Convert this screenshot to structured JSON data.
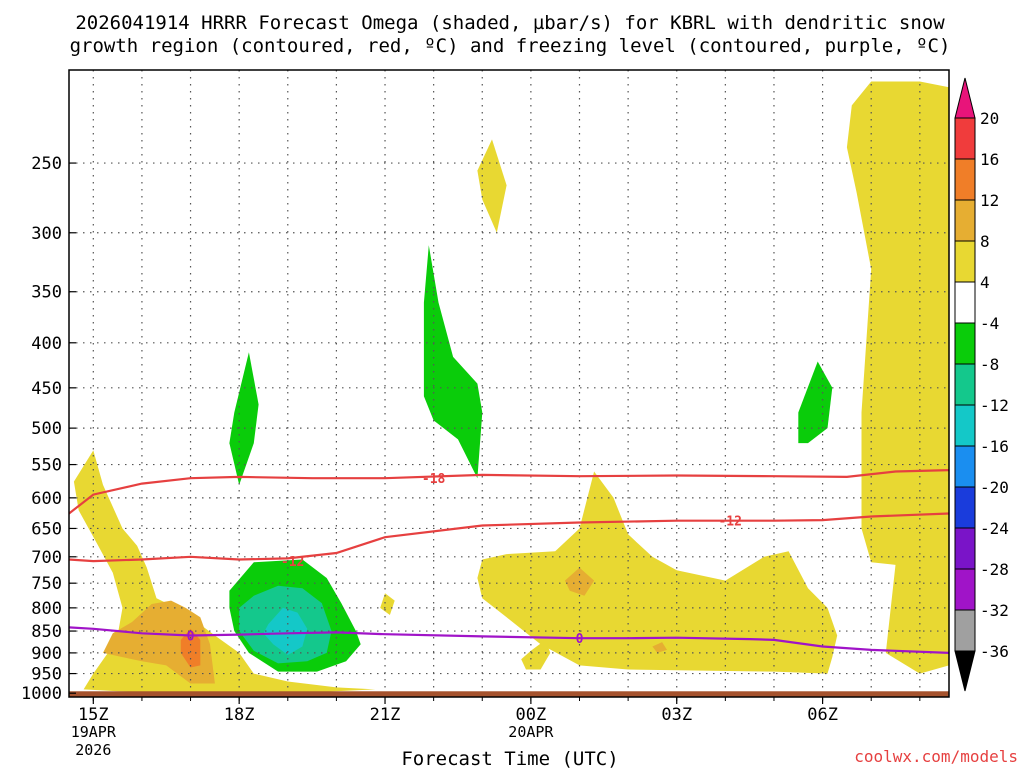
{
  "chart_data": {
    "type": "heatmap",
    "title_line1": "2026041914 HRRR Forecast Omega (shaded, µbar/s) for KBRL with dendritic snow",
    "title_line2": "growth region (contoured, red, ºC) and freezing level (contoured, purple, ºC)",
    "xlabel": "Forecast Time (UTC)",
    "ylabel": "",
    "watermark": "coolwx.com/models",
    "x_range_hours": [
      14.5,
      32.6
    ],
    "y_range_hpa": [
      1010,
      196
    ],
    "y_ticks": [
      250,
      300,
      350,
      400,
      450,
      500,
      550,
      600,
      650,
      700,
      750,
      800,
      850,
      900,
      950,
      1000
    ],
    "x_ticks": [
      {
        "hour": 15,
        "label": "15Z",
        "date1": "19APR",
        "date2": "2026"
      },
      {
        "hour": 18,
        "label": "18Z",
        "date1": "",
        "date2": ""
      },
      {
        "hour": 21,
        "label": "21Z",
        "date1": "",
        "date2": ""
      },
      {
        "hour": 24,
        "label": "00Z",
        "date1": "20APR",
        "date2": ""
      },
      {
        "hour": 27,
        "label": "03Z",
        "date1": "",
        "date2": ""
      },
      {
        "hour": 30,
        "label": "06Z",
        "date1": "",
        "date2": ""
      }
    ],
    "colorbar": {
      "labels": [
        "20",
        "16",
        "12",
        "8",
        "4",
        "-4",
        "-8",
        "-12",
        "-16",
        "-20",
        "-24",
        "-28",
        "-32",
        "-36"
      ],
      "colors": [
        "#e8147a",
        "#f03c3c",
        "#f07e28",
        "#e6ae32",
        "#e8d832",
        "#ffffff",
        "#0acc0a",
        "#14c88c",
        "#14c8c8",
        "#1a8ef0",
        "#1a3cdc",
        "#7a14c8",
        "#a014c8",
        "#a0a0a0",
        "#000000"
      ]
    },
    "omega_regions": [
      {
        "level": 4,
        "color": "#e8d832",
        "points": [
          [
            15.0,
            530
          ],
          [
            15.2,
            580
          ],
          [
            15.6,
            650
          ],
          [
            15.9,
            680
          ],
          [
            16.1,
            720
          ],
          [
            16.3,
            780
          ],
          [
            16.7,
            800
          ],
          [
            17.0,
            820
          ],
          [
            17.5,
            860
          ],
          [
            18.0,
            900
          ],
          [
            18.3,
            950
          ],
          [
            19.0,
            970
          ],
          [
            20.0,
            985
          ],
          [
            20.8,
            990
          ],
          [
            19.5,
            998
          ],
          [
            17.0,
            998
          ],
          [
            15.5,
            995
          ],
          [
            14.8,
            990
          ],
          [
            15.0,
            950
          ],
          [
            15.3,
            900
          ],
          [
            15.5,
            860
          ],
          [
            15.6,
            800
          ],
          [
            15.4,
            730
          ],
          [
            15.1,
            680
          ],
          [
            14.7,
            620
          ],
          [
            14.6,
            575
          ]
        ]
      },
      {
        "level": 4,
        "color": "#e8d832",
        "points": [
          [
            23.0,
            705
          ],
          [
            23.5,
            695
          ],
          [
            24.5,
            690
          ],
          [
            25.0,
            650
          ],
          [
            25.3,
            560
          ],
          [
            25.7,
            600
          ],
          [
            26.0,
            660
          ],
          [
            26.5,
            700
          ],
          [
            27.0,
            725
          ],
          [
            28.0,
            745
          ],
          [
            28.8,
            700
          ],
          [
            29.3,
            690
          ],
          [
            29.7,
            760
          ],
          [
            30.1,
            800
          ],
          [
            30.3,
            860
          ],
          [
            30.2,
            910
          ],
          [
            30.1,
            950
          ],
          [
            29.0,
            945
          ],
          [
            27.0,
            942
          ],
          [
            26.0,
            940
          ],
          [
            25.0,
            930
          ],
          [
            24.2,
            880
          ],
          [
            23.5,
            820
          ],
          [
            23.0,
            780
          ],
          [
            22.9,
            740
          ]
        ]
      },
      {
        "level": 4,
        "color": "#e8d832",
        "points": [
          [
            24.0,
            895
          ],
          [
            24.3,
            870
          ],
          [
            24.4,
            900
          ],
          [
            24.2,
            940
          ],
          [
            23.9,
            940
          ],
          [
            23.8,
            915
          ]
        ]
      },
      {
        "level": 4,
        "color": "#e8d832",
        "points": [
          [
            21.0,
            770
          ],
          [
            21.2,
            785
          ],
          [
            21.1,
            815
          ],
          [
            20.9,
            800
          ]
        ]
      },
      {
        "level": 4,
        "color": "#e8d832",
        "points": [
          [
            23.2,
            235
          ],
          [
            23.5,
            265
          ],
          [
            23.3,
            300
          ],
          [
            23.0,
            275
          ],
          [
            22.9,
            255
          ]
        ]
      },
      {
        "level": 4,
        "color": "#e8d832",
        "points": [
          [
            30.6,
            215
          ],
          [
            31.0,
            202
          ],
          [
            32.0,
            202
          ],
          [
            32.6,
            205
          ],
          [
            32.6,
            930
          ],
          [
            32.0,
            950
          ],
          [
            31.3,
            900
          ],
          [
            31.5,
            715
          ],
          [
            31.0,
            710
          ],
          [
            30.8,
            650
          ],
          [
            30.8,
            480
          ],
          [
            31.0,
            330
          ],
          [
            30.7,
            270
          ],
          [
            30.5,
            240
          ]
        ]
      },
      {
        "level": 8,
        "color": "#e6ae32",
        "points": [
          [
            15.4,
            855
          ],
          [
            15.8,
            830
          ],
          [
            16.2,
            792
          ],
          [
            16.6,
            785
          ],
          [
            16.9,
            800
          ],
          [
            17.2,
            820
          ],
          [
            17.4,
            880
          ],
          [
            17.5,
            975
          ],
          [
            17.0,
            975
          ],
          [
            16.5,
            930
          ],
          [
            16.0,
            920
          ],
          [
            15.6,
            910
          ],
          [
            15.2,
            900
          ]
        ]
      },
      {
        "level": 8,
        "color": "#e6ae32",
        "points": [
          [
            24.7,
            745
          ],
          [
            25.0,
            720
          ],
          [
            25.3,
            745
          ],
          [
            25.1,
            775
          ],
          [
            24.8,
            765
          ]
        ]
      },
      {
        "level": 8,
        "color": "#e6ae32",
        "points": [
          [
            26.5,
            885
          ],
          [
            26.7,
            875
          ],
          [
            26.8,
            893
          ],
          [
            26.6,
            900
          ]
        ]
      },
      {
        "level": 12,
        "color": "#f07e28",
        "points": [
          [
            16.8,
            870
          ],
          [
            17.0,
            845
          ],
          [
            17.2,
            870
          ],
          [
            17.2,
            930
          ],
          [
            17.0,
            935
          ],
          [
            16.8,
            900
          ]
        ]
      },
      {
        "level": -4,
        "color": "#0acc0a",
        "points": [
          [
            17.9,
            480
          ],
          [
            18.2,
            410
          ],
          [
            18.4,
            470
          ],
          [
            18.3,
            520
          ],
          [
            18.0,
            580
          ],
          [
            17.8,
            520
          ]
        ]
      },
      {
        "level": -4,
        "color": "#0acc0a",
        "points": [
          [
            21.8,
            360
          ],
          [
            21.9,
            310
          ],
          [
            22.1,
            360
          ],
          [
            22.4,
            415
          ],
          [
            22.9,
            445
          ],
          [
            23.0,
            480
          ],
          [
            22.9,
            570
          ],
          [
            22.5,
            515
          ],
          [
            22.0,
            490
          ],
          [
            21.8,
            460
          ]
        ]
      },
      {
        "level": -4,
        "color": "#0acc0a",
        "points": [
          [
            29.5,
            480
          ],
          [
            29.9,
            420
          ],
          [
            30.2,
            450
          ],
          [
            30.1,
            500
          ],
          [
            29.7,
            520
          ],
          [
            29.5,
            520
          ]
        ]
      },
      {
        "level": -4,
        "color": "#0acc0a",
        "points": [
          [
            17.8,
            765
          ],
          [
            18.3,
            710
          ],
          [
            19.3,
            705
          ],
          [
            19.8,
            740
          ],
          [
            20.1,
            790
          ],
          [
            20.4,
            850
          ],
          [
            20.5,
            880
          ],
          [
            20.2,
            920
          ],
          [
            19.6,
            945
          ],
          [
            18.8,
            945
          ],
          [
            18.2,
            900
          ],
          [
            17.9,
            850
          ],
          [
            17.8,
            800
          ]
        ]
      },
      {
        "level": -8,
        "color": "#14c88c",
        "points": [
          [
            18.0,
            800
          ],
          [
            18.3,
            775
          ],
          [
            18.8,
            755
          ],
          [
            19.3,
            760
          ],
          [
            19.7,
            790
          ],
          [
            19.9,
            850
          ],
          [
            19.8,
            900
          ],
          [
            19.4,
            920
          ],
          [
            18.8,
            925
          ],
          [
            18.3,
            895
          ],
          [
            18.0,
            850
          ]
        ]
      },
      {
        "level": -12,
        "color": "#14c8c8",
        "points": [
          [
            18.6,
            835
          ],
          [
            18.9,
            800
          ],
          [
            19.2,
            810
          ],
          [
            19.4,
            845
          ],
          [
            19.3,
            885
          ],
          [
            19.0,
            905
          ],
          [
            18.7,
            880
          ],
          [
            18.5,
            855
          ]
        ]
      }
    ],
    "contours": [
      {
        "name": "dgz-minus-18",
        "label": "-18",
        "label_hour": 22.0,
        "label_p": 570,
        "color": "#e64040",
        "points": [
          [
            14.5,
            625
          ],
          [
            15.0,
            595
          ],
          [
            16.0,
            578
          ],
          [
            17.0,
            570
          ],
          [
            18.0,
            568
          ],
          [
            19.5,
            570
          ],
          [
            21.0,
            570
          ],
          [
            23.0,
            565
          ],
          [
            25.0,
            567
          ],
          [
            27.0,
            566
          ],
          [
            29.0,
            567
          ],
          [
            30.5,
            568
          ],
          [
            31.5,
            560
          ],
          [
            32.6,
            558
          ]
        ]
      },
      {
        "name": "dgz-minus-12",
        "label": "-12",
        "label_hour": 28.1,
        "label_p": 637,
        "color": "#e64040",
        "points": [
          [
            14.5,
            705
          ],
          [
            15.0,
            708
          ],
          [
            16.0,
            705
          ],
          [
            17.0,
            700
          ],
          [
            18.0,
            705
          ],
          [
            19.0,
            703
          ],
          [
            20.0,
            693
          ],
          [
            21.0,
            665
          ],
          [
            23.0,
            645
          ],
          [
            25.0,
            640
          ],
          [
            27.0,
            637
          ],
          [
            29.0,
            637
          ],
          [
            30.0,
            636
          ],
          [
            31.0,
            630
          ],
          [
            32.6,
            625
          ]
        ]
      },
      {
        "name": "dgz-minus-12-b",
        "label": "-12",
        "label_hour": 19.1,
        "label_p": 708,
        "color": "#e64040",
        "points": []
      },
      {
        "name": "freezing-level",
        "label": "0",
        "label_hour": 17.0,
        "label_p": 860,
        "color": "#a014c8",
        "points": [
          [
            14.5,
            842
          ],
          [
            15.0,
            845
          ],
          [
            16.0,
            855
          ],
          [
            17.0,
            860
          ],
          [
            18.0,
            858
          ],
          [
            19.0,
            855
          ],
          [
            20.0,
            853
          ],
          [
            21.0,
            857
          ],
          [
            23.0,
            862
          ],
          [
            25.0,
            866
          ],
          [
            26.0,
            866
          ],
          [
            27.0,
            865
          ],
          [
            28.5,
            868
          ],
          [
            29.0,
            870
          ],
          [
            30.0,
            885
          ],
          [
            31.0,
            893
          ],
          [
            32.6,
            900
          ]
        ]
      },
      {
        "name": "freezing-level-b",
        "label": "0",
        "label_hour": 25.0,
        "label_p": 866,
        "color": "#a014c8",
        "points": []
      }
    ],
    "ground": {
      "color": "#a5522d",
      "top_hpa": 995
    }
  }
}
